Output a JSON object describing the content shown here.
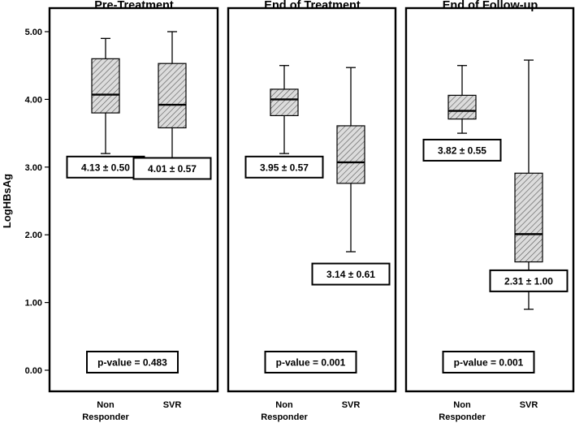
{
  "chart_data": {
    "type": "box",
    "ylabel": "LogHBsAg",
    "ylim": [
      0,
      5.2
    ],
    "yticks": [
      "0.00",
      "1.00",
      "2.00",
      "3.00",
      "4.00",
      "5.00"
    ],
    "yticks_values": [
      0,
      1,
      2,
      3,
      4,
      5
    ],
    "categories": [
      {
        "line1": "Non",
        "line2": "Responder"
      },
      {
        "line1": "SVR",
        "line2": ""
      }
    ],
    "panels": [
      {
        "title": "Pre-Treatment",
        "boxes": [
          {
            "min": 3.2,
            "q1": 3.8,
            "median": 4.07,
            "q3": 4.6,
            "max": 4.9,
            "label": "4.13 ± 0.50",
            "label_y": 3.0
          },
          {
            "min": 3.13,
            "q1": 3.58,
            "median": 3.92,
            "q3": 4.53,
            "max": 5.0,
            "label": "4.01 ± 0.57",
            "label_y": 2.98
          }
        ],
        "pvalue": "p-value = 0.483"
      },
      {
        "title": "End of Treatment",
        "boxes": [
          {
            "min": 3.2,
            "q1": 3.76,
            "median": 4.0,
            "q3": 4.15,
            "max": 4.5,
            "label": "3.95 ± 0.57",
            "label_y": 3.0
          },
          {
            "min": 1.75,
            "q1": 2.76,
            "median": 3.07,
            "q3": 3.61,
            "max": 4.47,
            "label": "3.14 ± 0.61",
            "label_y": 1.42
          }
        ],
        "pvalue": "p-value = 0.001"
      },
      {
        "title": "End of Follow-up",
        "boxes": [
          {
            "min": 3.5,
            "q1": 3.71,
            "median": 3.83,
            "q3": 4.06,
            "max": 4.5,
            "label": "3.82 ± 0.55",
            "label_y": 3.25
          },
          {
            "min": 0.9,
            "q1": 1.6,
            "median": 2.01,
            "q3": 2.91,
            "max": 4.58,
            "label": "2.31 ± 1.00",
            "label_y": 1.32
          }
        ],
        "pvalue": "p-value = 0.001"
      }
    ]
  }
}
